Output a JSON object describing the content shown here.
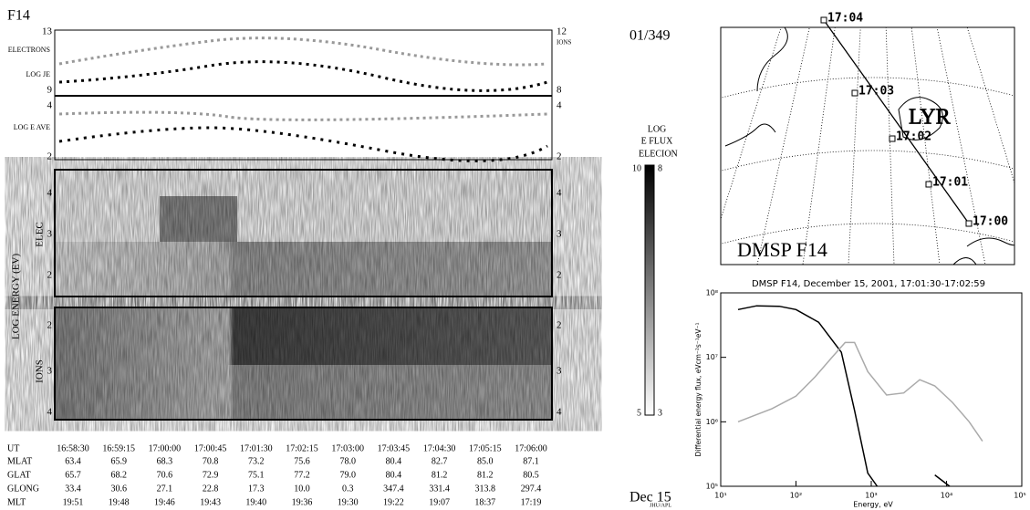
{
  "header": {
    "satellite": "F14",
    "frame": "01/349",
    "date": "Dec 15",
    "credit": "JHU/APL"
  },
  "flux_panel": {
    "electrons": "ELECTRONS",
    "log_je": "LOG JE",
    "log_e_ave": "LOG E AVE",
    "ions": "IONS",
    "je_ticks": [
      "13",
      "9"
    ],
    "ion_ticks": [
      "12",
      "8"
    ],
    "eave_left_ticks": [
      "4",
      "2"
    ],
    "eave_right_ticks": [
      "4",
      "2"
    ]
  },
  "spectrogram": {
    "axis_label": "LOG ENERGY (EV)",
    "elec_label": "ELEC",
    "ions_label": "IONS",
    "elec_ticks": [
      "4",
      "3",
      "2"
    ],
    "ion_ticks": [
      "2",
      "3",
      "4"
    ]
  },
  "colorbar": {
    "title": [
      "LOG",
      "E FLUX"
    ],
    "elec": "ELEC",
    "ion": "ION",
    "elec_range": [
      "10",
      "5"
    ],
    "ion_range": [
      "8",
      "3"
    ]
  },
  "ephemeris": {
    "rows": [
      {
        "label": "UT",
        "values": [
          "16:58:30",
          "16:59:15",
          "17:00:00",
          "17:00:45",
          "17:01:30",
          "17:02:15",
          "17:03:00",
          "17:03:45",
          "17:04:30",
          "17:05:15",
          "17:06:00"
        ]
      },
      {
        "label": "MLAT",
        "values": [
          "63.4",
          "65.9",
          "68.3",
          "70.8",
          "73.2",
          "75.6",
          "78.0",
          "80.4",
          "82.7",
          "85.0",
          "87.1"
        ]
      },
      {
        "label": "GLAT",
        "values": [
          "65.7",
          "68.2",
          "70.6",
          "72.9",
          "75.1",
          "77.2",
          "79.0",
          "80.4",
          "81.2",
          "81.2",
          "80.5"
        ]
      },
      {
        "label": "GLONG",
        "values": [
          "33.4",
          "30.6",
          "27.1",
          "22.8",
          "17.3",
          "10.0",
          "0.3",
          "347.4",
          "331.4",
          "313.8",
          "297.4"
        ]
      },
      {
        "label": "MLT",
        "values": [
          "19:51",
          "19:48",
          "19:46",
          "19:43",
          "19:40",
          "19:36",
          "19:30",
          "19:22",
          "19:07",
          "18:37",
          "17:19"
        ]
      }
    ]
  },
  "map": {
    "title": "DMSP F14",
    "station": "LYR",
    "times": [
      "17:04",
      "17:03",
      "17:02",
      "17:01",
      "17:00"
    ]
  },
  "chart_data": {
    "type": "line",
    "title": "DMSP F14, December 15, 2001, 17:01:30-17:02:59",
    "x_label": "Energy, eV",
    "y_label": "Differential energy flux, eVcm⁻²s⁻¹eV⁻¹",
    "xscale": "log",
    "yscale": "log",
    "xlim": [
      10,
      100000
    ],
    "ylim": [
      100000,
      100000000
    ],
    "xticks": [
      {
        "value": 10,
        "label": "10¹"
      },
      {
        "value": 100,
        "label": "10²"
      },
      {
        "value": 1000,
        "label": "10³"
      },
      {
        "value": 10000,
        "label": "10⁴"
      },
      {
        "value": 100000,
        "label": "10⁵"
      }
    ],
    "yticks": [
      {
        "value": 100000,
        "label": "10⁵"
      },
      {
        "value": 1000000,
        "label": "10⁶"
      },
      {
        "value": 10000000,
        "label": "10⁷"
      },
      {
        "value": 100000000,
        "label": "10⁸"
      }
    ],
    "series": [
      {
        "color": "#000000",
        "x": [
          17,
          30,
          60,
          100,
          200,
          400,
          600,
          900,
          1200,
          3000,
          7000,
          11000
        ],
        "values": [
          55000000,
          63000000,
          62000000,
          55000000,
          35000000,
          12000000,
          1500000,
          160000,
          100000,
          null,
          150000,
          100000
        ]
      },
      {
        "color": "#aaaaaa",
        "x": [
          17,
          48,
          100,
          180,
          300,
          450,
          600,
          900,
          1600,
          2700,
          4400,
          7000,
          12000,
          20000,
          30000
        ],
        "values": [
          1000000,
          1600000,
          2500000,
          5000000,
          10000000,
          17000000,
          17000000,
          6000000,
          2600000,
          2800000,
          4500000,
          3600000,
          2000000,
          1000000,
          500000
        ]
      }
    ]
  }
}
